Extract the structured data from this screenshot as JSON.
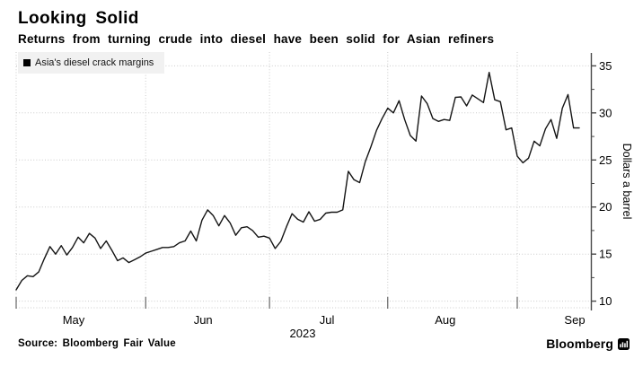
{
  "chart_data": {
    "type": "line",
    "title": "Looking Solid",
    "subtitle": "Returns from turning crude into diesel have been solid for Asian refiners",
    "source": "Source: Bloomberg Fair Value",
    "brand": "Bloomberg",
    "legend_position": "top-left",
    "grid": true,
    "x": {
      "year_label": "2023",
      "ticks": [
        {
          "label": "May",
          "index": 0
        },
        {
          "label": "Jun",
          "index": 23
        },
        {
          "label": "Jul",
          "index": 45
        },
        {
          "label": "Aug",
          "index": 66
        },
        {
          "label": "Sep",
          "index": 89
        }
      ]
    },
    "y": {
      "title": "Dollars a barrel",
      "min": 10,
      "max": 35,
      "ticks": [
        10,
        15,
        20,
        25,
        30,
        35
      ],
      "minor_ticks": [
        12.5,
        17.5,
        22.5,
        27.5,
        32.5
      ],
      "side": "right"
    },
    "series": [
      {
        "name": "Asia's diesel crack margins",
        "color": "#141414",
        "values": [
          11.2,
          12.2,
          12.7,
          12.6,
          13.1,
          14.5,
          15.8,
          15.0,
          15.9,
          14.9,
          15.7,
          16.8,
          16.2,
          17.2,
          16.7,
          15.6,
          16.4,
          15.4,
          14.3,
          14.6,
          14.1,
          14.4,
          14.7,
          15.1,
          15.3,
          15.5,
          15.7,
          15.7,
          15.8,
          16.2,
          16.4,
          17.45,
          16.4,
          18.6,
          19.7,
          19.1,
          18.0,
          19.1,
          18.3,
          17.0,
          17.8,
          17.9,
          17.5,
          16.8,
          16.9,
          16.7,
          15.6,
          16.35,
          17.9,
          19.3,
          18.7,
          18.4,
          19.5,
          18.5,
          18.7,
          19.35,
          19.45,
          19.45,
          19.7,
          23.8,
          22.9,
          22.6,
          24.8,
          26.4,
          28.15,
          29.4,
          30.5,
          30.0,
          31.3,
          29.3,
          27.6,
          27.0,
          31.8,
          31.0,
          29.4,
          29.1,
          29.3,
          29.2,
          31.65,
          31.7,
          30.75,
          31.9,
          31.5,
          31.1,
          34.3,
          31.4,
          31.2,
          28.2,
          28.4,
          25.4,
          24.7,
          25.2,
          27.0,
          26.5,
          28.3,
          29.3,
          27.3,
          30.5,
          31.95,
          28.4,
          28.4
        ]
      }
    ],
    "colors": {
      "line": "#141414",
      "grid": "#cbcbcb",
      "axis": "#4a4a4a",
      "legend_bg": "#f1f1f1",
      "text": "#000000"
    }
  }
}
